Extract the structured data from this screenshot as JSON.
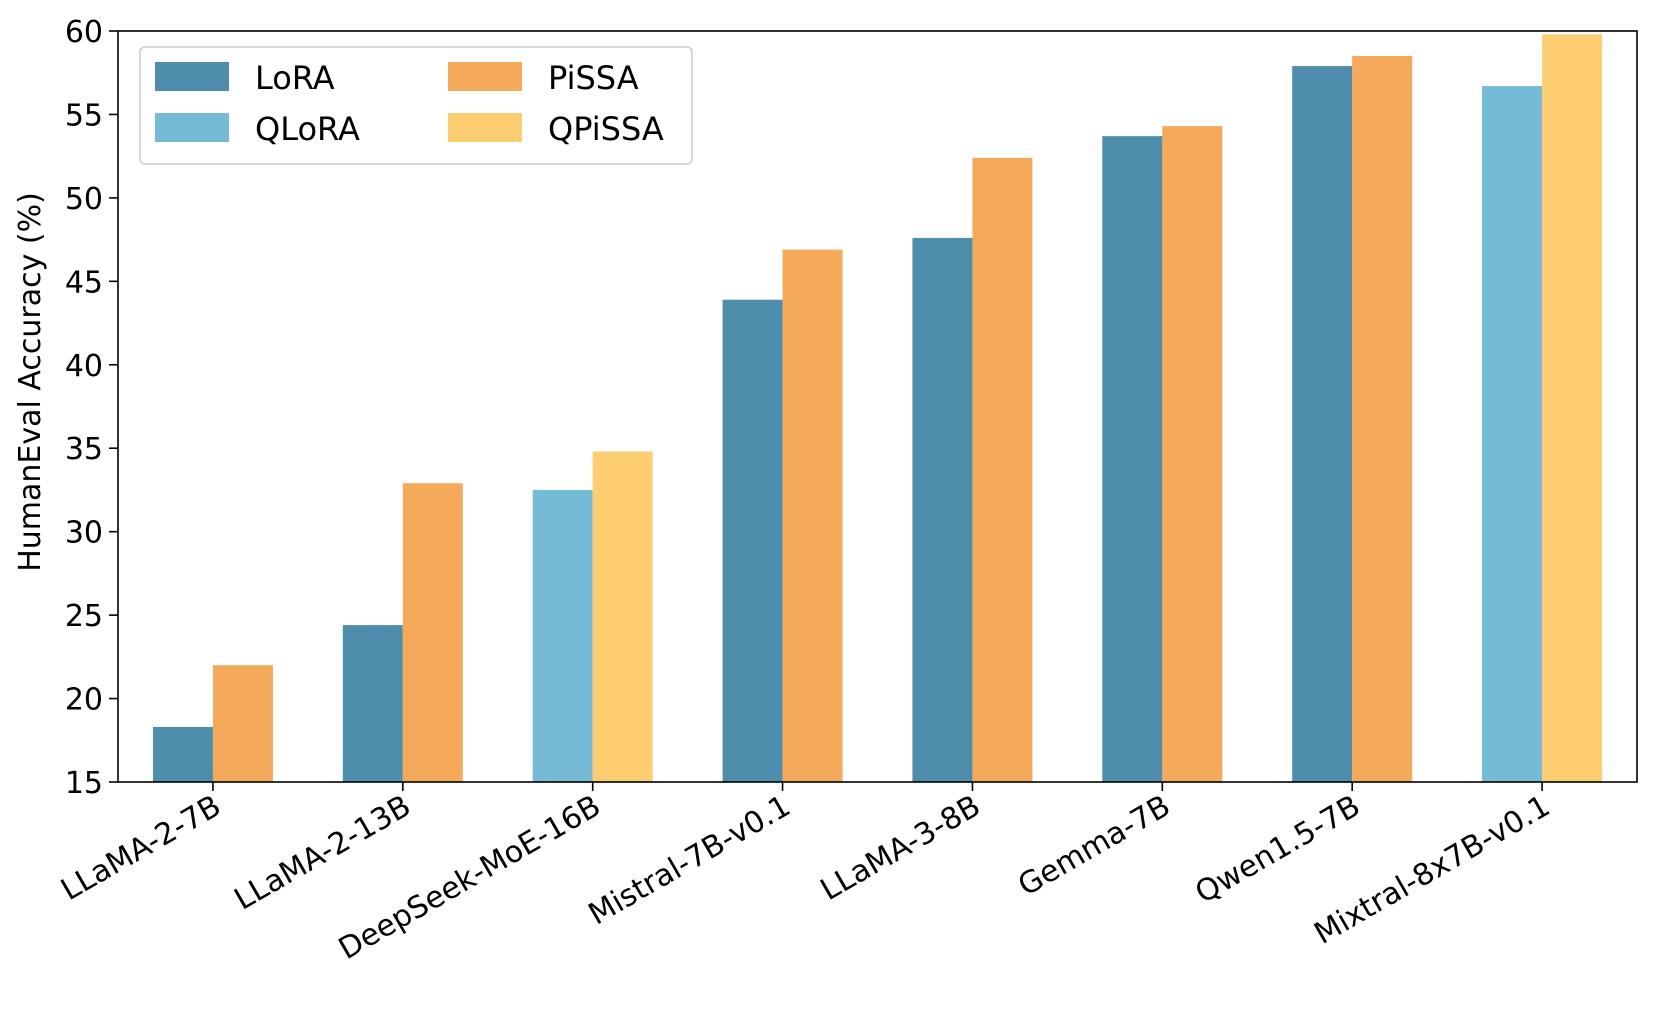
{
  "chart_data": {
    "type": "bar",
    "title": "",
    "xlabel": "",
    "ylabel": "HumanEval Accuracy (%)",
    "ylim": [
      15,
      60
    ],
    "yticks": [
      15,
      20,
      25,
      30,
      35,
      40,
      45,
      50,
      55,
      60
    ],
    "grid": false,
    "legend_position": "top-left",
    "categories": [
      "LLaMA-2-7B",
      "LLaMA-2-13B",
      "DeepSeek-MoE-16B",
      "Mistral-7B-v0.1",
      "LLaMA-3-8B",
      "Gemma-7B",
      "Qwen1.5-7B",
      "Mixtral-8x7B-v0.1"
    ],
    "series": [
      {
        "name": "LoRA",
        "color": "#4f8dac",
        "values": [
          18.3,
          24.4,
          null,
          43.9,
          47.6,
          53.7,
          57.9,
          null
        ]
      },
      {
        "name": "QLoRA",
        "color": "#75bbd6",
        "values": [
          null,
          null,
          32.5,
          null,
          null,
          null,
          null,
          56.7
        ]
      },
      {
        "name": "PiSSA",
        "color": "#f5a95a",
        "values": [
          22.0,
          32.9,
          null,
          46.9,
          52.4,
          54.3,
          58.5,
          null
        ]
      },
      {
        "name": "QPiSSA",
        "color": "#fdcd71",
        "values": [
          null,
          null,
          34.8,
          null,
          null,
          null,
          null,
          59.8
        ]
      }
    ]
  }
}
